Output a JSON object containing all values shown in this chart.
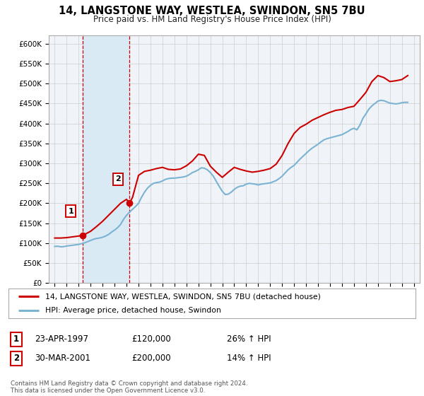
{
  "title": "14, LANGSTONE WAY, WESTLEA, SWINDON, SN5 7BU",
  "subtitle": "Price paid vs. HM Land Registry's House Price Index (HPI)",
  "legend_line1": "14, LANGSTONE WAY, WESTLEA, SWINDON, SN5 7BU (detached house)",
  "legend_line2": "HPI: Average price, detached house, Swindon",
  "sale1_date": "23-APR-1997",
  "sale1_price": "£120,000",
  "sale1_hpi": "26% ↑ HPI",
  "sale1_year": 1997.31,
  "sale1_value": 120000,
  "sale2_date": "30-MAR-2001",
  "sale2_price": "£200,000",
  "sale2_hpi": "14% ↑ HPI",
  "sale2_year": 2001.24,
  "sale2_value": 200000,
  "red_color": "#cc0000",
  "blue_color": "#7bb3d3",
  "shading_color": "#daeaf5",
  "background_color": "#f0f4f8",
  "grid_color": "#cccccc",
  "ylim": [
    0,
    620000
  ],
  "yticks": [
    0,
    50000,
    100000,
    150000,
    200000,
    250000,
    300000,
    350000,
    400000,
    450000,
    500000,
    550000,
    600000
  ],
  "ytick_labels": [
    "£0",
    "£50K",
    "£100K",
    "£150K",
    "£200K",
    "£250K",
    "£300K",
    "£350K",
    "£400K",
    "£450K",
    "£500K",
    "£550K",
    "£600K"
  ],
  "copyright_text": "Contains HM Land Registry data © Crown copyright and database right 2024.\nThis data is licensed under the Open Government Licence v3.0.",
  "hpi_data": [
    [
      1995.0,
      92000
    ],
    [
      1995.25,
      92500
    ],
    [
      1995.5,
      91000
    ],
    [
      1995.75,
      91500
    ],
    [
      1996.0,
      93000
    ],
    [
      1996.25,
      94000
    ],
    [
      1996.5,
      95000
    ],
    [
      1996.75,
      96000
    ],
    [
      1997.0,
      97000
    ],
    [
      1997.25,
      99000
    ],
    [
      1997.5,
      101000
    ],
    [
      1997.75,
      104000
    ],
    [
      1998.0,
      107000
    ],
    [
      1998.25,
      110000
    ],
    [
      1998.5,
      112000
    ],
    [
      1998.75,
      113000
    ],
    [
      1999.0,
      115000
    ],
    [
      1999.25,
      118000
    ],
    [
      1999.5,
      122000
    ],
    [
      1999.75,
      128000
    ],
    [
      2000.0,
      133000
    ],
    [
      2000.25,
      139000
    ],
    [
      2000.5,
      147000
    ],
    [
      2000.75,
      160000
    ],
    [
      2001.0,
      170000
    ],
    [
      2001.25,
      178000
    ],
    [
      2001.5,
      185000
    ],
    [
      2001.75,
      192000
    ],
    [
      2002.0,
      200000
    ],
    [
      2002.25,
      215000
    ],
    [
      2002.5,
      228000
    ],
    [
      2002.75,
      238000
    ],
    [
      2003.0,
      245000
    ],
    [
      2003.25,
      250000
    ],
    [
      2003.5,
      252000
    ],
    [
      2003.75,
      253000
    ],
    [
      2004.0,
      256000
    ],
    [
      2004.25,
      260000
    ],
    [
      2004.5,
      262000
    ],
    [
      2004.75,
      263000
    ],
    [
      2005.0,
      263000
    ],
    [
      2005.25,
      264000
    ],
    [
      2005.5,
      265000
    ],
    [
      2005.75,
      266000
    ],
    [
      2006.0,
      268000
    ],
    [
      2006.25,
      272000
    ],
    [
      2006.5,
      277000
    ],
    [
      2006.75,
      280000
    ],
    [
      2007.0,
      284000
    ],
    [
      2007.25,
      289000
    ],
    [
      2007.5,
      288000
    ],
    [
      2007.75,
      284000
    ],
    [
      2008.0,
      277000
    ],
    [
      2008.25,
      268000
    ],
    [
      2008.5,
      255000
    ],
    [
      2008.75,
      242000
    ],
    [
      2009.0,
      230000
    ],
    [
      2009.25,
      222000
    ],
    [
      2009.5,
      223000
    ],
    [
      2009.75,
      228000
    ],
    [
      2010.0,
      235000
    ],
    [
      2010.25,
      240000
    ],
    [
      2010.5,
      243000
    ],
    [
      2010.75,
      244000
    ],
    [
      2011.0,
      248000
    ],
    [
      2011.25,
      250000
    ],
    [
      2011.5,
      249000
    ],
    [
      2011.75,
      248000
    ],
    [
      2012.0,
      246000
    ],
    [
      2012.25,
      248000
    ],
    [
      2012.5,
      249000
    ],
    [
      2012.75,
      250000
    ],
    [
      2013.0,
      251000
    ],
    [
      2013.25,
      254000
    ],
    [
      2013.5,
      257000
    ],
    [
      2013.75,
      262000
    ],
    [
      2014.0,
      268000
    ],
    [
      2014.25,
      276000
    ],
    [
      2014.5,
      284000
    ],
    [
      2014.75,
      290000
    ],
    [
      2015.0,
      295000
    ],
    [
      2015.25,
      303000
    ],
    [
      2015.5,
      311000
    ],
    [
      2015.75,
      318000
    ],
    [
      2016.0,
      325000
    ],
    [
      2016.25,
      332000
    ],
    [
      2016.5,
      338000
    ],
    [
      2016.75,
      343000
    ],
    [
      2017.0,
      348000
    ],
    [
      2017.25,
      354000
    ],
    [
      2017.5,
      359000
    ],
    [
      2017.75,
      362000
    ],
    [
      2018.0,
      364000
    ],
    [
      2018.25,
      366000
    ],
    [
      2018.5,
      368000
    ],
    [
      2018.75,
      370000
    ],
    [
      2019.0,
      372000
    ],
    [
      2019.25,
      376000
    ],
    [
      2019.5,
      380000
    ],
    [
      2019.75,
      385000
    ],
    [
      2020.0,
      388000
    ],
    [
      2020.25,
      384000
    ],
    [
      2020.5,
      396000
    ],
    [
      2020.75,
      413000
    ],
    [
      2021.0,
      424000
    ],
    [
      2021.25,
      436000
    ],
    [
      2021.5,
      444000
    ],
    [
      2021.75,
      450000
    ],
    [
      2022.0,
      456000
    ],
    [
      2022.25,
      458000
    ],
    [
      2022.5,
      457000
    ],
    [
      2022.75,
      454000
    ],
    [
      2023.0,
      451000
    ],
    [
      2023.25,
      450000
    ],
    [
      2023.5,
      449000
    ],
    [
      2023.75,
      450000
    ],
    [
      2024.0,
      452000
    ],
    [
      2024.25,
      453000
    ],
    [
      2024.5,
      453000
    ]
  ],
  "price_data": [
    [
      1995.0,
      113000
    ],
    [
      1995.5,
      113000
    ],
    [
      1996.0,
      114000
    ],
    [
      1996.5,
      116000
    ],
    [
      1997.0,
      118000
    ],
    [
      1997.31,
      120000
    ],
    [
      1997.5,
      122000
    ],
    [
      1998.0,
      130000
    ],
    [
      1998.5,
      142000
    ],
    [
      1999.0,
      155000
    ],
    [
      1999.5,
      170000
    ],
    [
      2000.0,
      185000
    ],
    [
      2000.5,
      200000
    ],
    [
      2001.0,
      210000
    ],
    [
      2001.24,
      200000
    ],
    [
      2001.5,
      215000
    ],
    [
      2002.0,
      270000
    ],
    [
      2002.5,
      280000
    ],
    [
      2003.0,
      283000
    ],
    [
      2003.5,
      287000
    ],
    [
      2004.0,
      290000
    ],
    [
      2004.5,
      285000
    ],
    [
      2005.0,
      284000
    ],
    [
      2005.5,
      286000
    ],
    [
      2006.0,
      294000
    ],
    [
      2006.5,
      306000
    ],
    [
      2007.0,
      323000
    ],
    [
      2007.5,
      320000
    ],
    [
      2008.0,
      293000
    ],
    [
      2008.5,
      278000
    ],
    [
      2009.0,
      265000
    ],
    [
      2009.5,
      278000
    ],
    [
      2010.0,
      290000
    ],
    [
      2010.5,
      285000
    ],
    [
      2011.0,
      281000
    ],
    [
      2011.5,
      278000
    ],
    [
      2012.0,
      280000
    ],
    [
      2012.5,
      283000
    ],
    [
      2013.0,
      287000
    ],
    [
      2013.5,
      298000
    ],
    [
      2014.0,
      320000
    ],
    [
      2014.5,
      350000
    ],
    [
      2015.0,
      375000
    ],
    [
      2015.5,
      390000
    ],
    [
      2016.0,
      398000
    ],
    [
      2016.5,
      408000
    ],
    [
      2017.0,
      415000
    ],
    [
      2017.5,
      422000
    ],
    [
      2018.0,
      428000
    ],
    [
      2018.5,
      433000
    ],
    [
      2019.0,
      435000
    ],
    [
      2019.5,
      440000
    ],
    [
      2020.0,
      443000
    ],
    [
      2020.5,
      460000
    ],
    [
      2021.0,
      478000
    ],
    [
      2021.5,
      505000
    ],
    [
      2022.0,
      520000
    ],
    [
      2022.5,
      515000
    ],
    [
      2023.0,
      505000
    ],
    [
      2023.5,
      507000
    ],
    [
      2024.0,
      510000
    ],
    [
      2024.5,
      520000
    ]
  ]
}
